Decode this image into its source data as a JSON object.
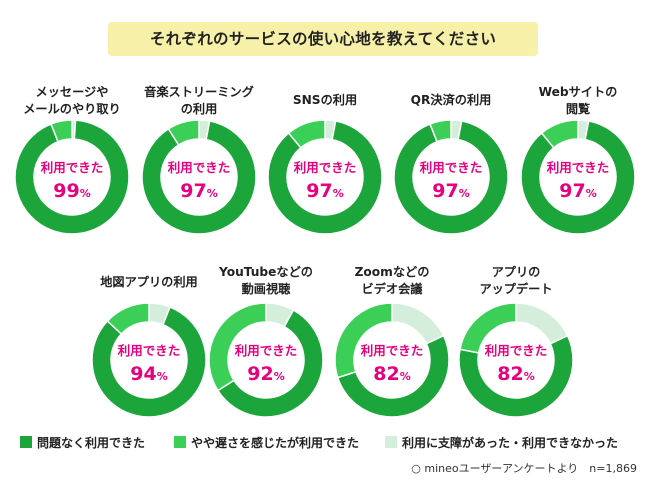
{
  "title": "それぞれのサービスの使い心地を教えてください",
  "colors": {
    "no_problem": "#1ca53b",
    "slow_but_usable": "#3ccf57",
    "had_trouble": "#d4eedb",
    "center_text": "#e5007f"
  },
  "legend": [
    {
      "key": "no_problem",
      "label": "問題なく利用できた"
    },
    {
      "key": "slow_but_usable",
      "label": "やや遅さを感じたが利用できた"
    },
    {
      "key": "had_trouble",
      "label": "利用に支障があった・利用できなかった"
    }
  ],
  "source_note": "○ mineoユーザーアンケートより　n=1,869",
  "chart_data": [
    {
      "type": "pie",
      "title": [
        "メッセージや",
        "メールのやり取り"
      ],
      "center_label": "利用できた",
      "center_value": "99",
      "unit": "%",
      "slices": {
        "no_problem": 93,
        "slow_but_usable": 6,
        "had_trouble": 1
      }
    },
    {
      "type": "pie",
      "title": [
        "音楽ストリーミング",
        "の利用"
      ],
      "center_label": "利用できた",
      "center_value": "97",
      "unit": "%",
      "slices": {
        "no_problem": 88,
        "slow_but_usable": 9,
        "had_trouble": 3
      }
    },
    {
      "type": "pie",
      "title": [
        "SNSの利用"
      ],
      "center_label": "利用できた",
      "center_value": "97",
      "unit": "%",
      "slices": {
        "no_problem": 86,
        "slow_but_usable": 11,
        "had_trouble": 3
      }
    },
    {
      "type": "pie",
      "title": [
        "QR決済の利用"
      ],
      "center_label": "利用できた",
      "center_value": "97",
      "unit": "%",
      "slices": {
        "no_problem": 91,
        "slow_but_usable": 6,
        "had_trouble": 3
      }
    },
    {
      "type": "pie",
      "title": [
        "Webサイトの",
        "閲覧"
      ],
      "center_label": "利用できた",
      "center_value": "97",
      "unit": "%",
      "slices": {
        "no_problem": 86,
        "slow_but_usable": 11,
        "had_trouble": 3
      }
    },
    {
      "type": "pie",
      "title": [
        "地図アプリの利用"
      ],
      "center_label": "利用できた",
      "center_value": "94",
      "unit": "%",
      "slices": {
        "no_problem": 81,
        "slow_but_usable": 13,
        "had_trouble": 6
      }
    },
    {
      "type": "pie",
      "title": [
        "YouTubeなどの",
        "動画視聴"
      ],
      "center_label": "利用できた",
      "center_value": "92",
      "unit": "%",
      "slices": {
        "no_problem": 58,
        "slow_but_usable": 34,
        "had_trouble": 8
      }
    },
    {
      "type": "pie",
      "title": [
        "Zoomなどの",
        "ビデオ会議"
      ],
      "center_label": "利用できた",
      "center_value": "82",
      "unit": "%",
      "slices": {
        "no_problem": 52,
        "slow_but_usable": 30,
        "had_trouble": 18
      }
    },
    {
      "type": "pie",
      "title": [
        "アプリの",
        "アップデート"
      ],
      "center_label": "利用できた",
      "center_value": "82",
      "unit": "%",
      "slices": {
        "no_problem": 60,
        "slow_but_usable": 22,
        "had_trouble": 18
      }
    }
  ]
}
